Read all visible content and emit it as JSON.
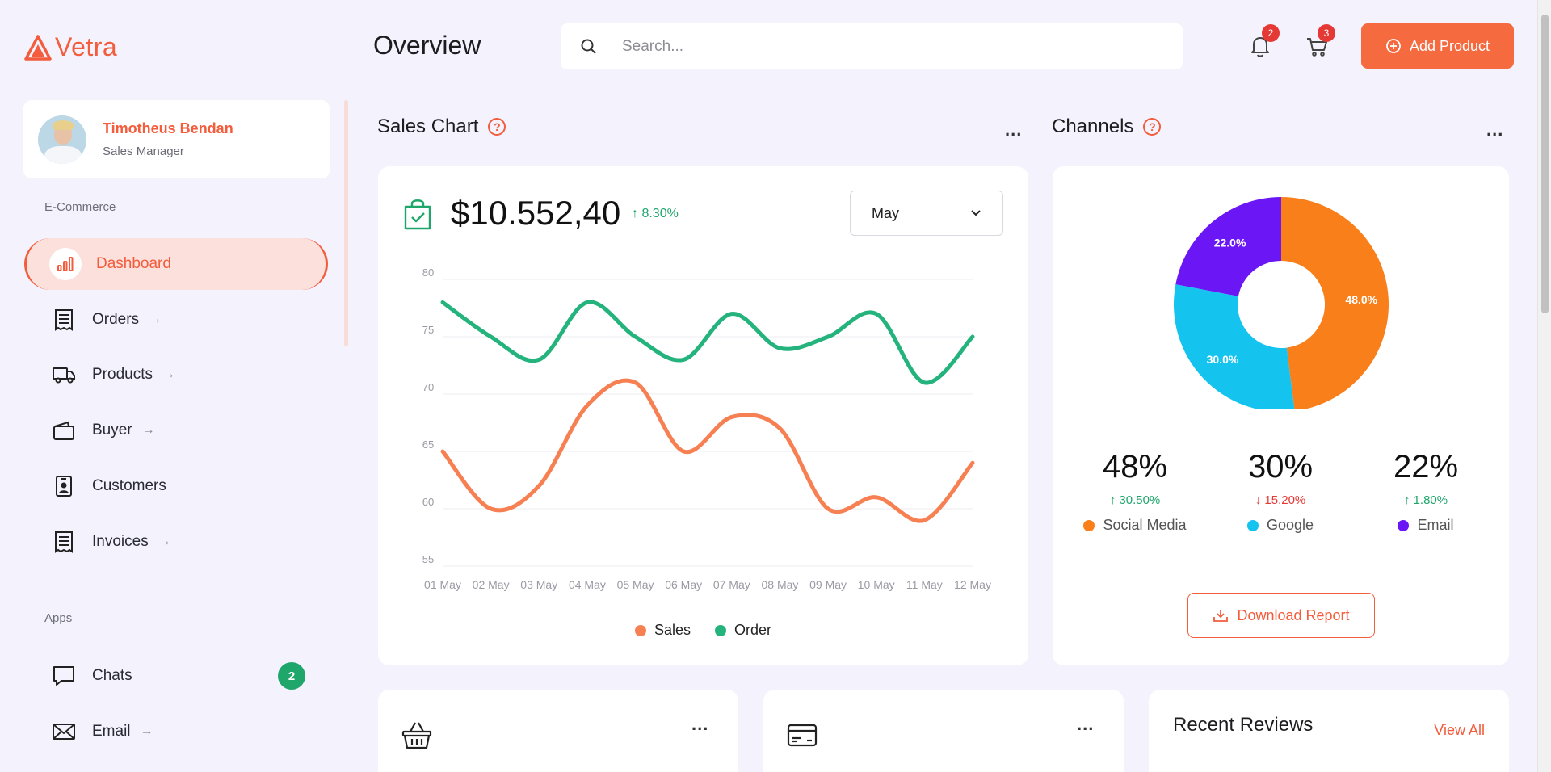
{
  "app": {
    "name": "Vetra"
  },
  "profile": {
    "name": "Timotheus Bendan",
    "role": "Sales Manager"
  },
  "sidebar": {
    "section_ecommerce": "E-Commerce",
    "section_apps": "Apps",
    "items": [
      {
        "label": "Dashboard",
        "icon": "bar-chart-icon",
        "active": true,
        "arrow": ""
      },
      {
        "label": "Orders",
        "icon": "receipt-icon",
        "arrow": "→"
      },
      {
        "label": "Products",
        "icon": "truck-icon",
        "arrow": "→"
      },
      {
        "label": "Buyer",
        "icon": "wallet-icon",
        "arrow": "→"
      },
      {
        "label": "Customers",
        "icon": "id-badge-icon",
        "arrow": ""
      },
      {
        "label": "Invoices",
        "icon": "invoice-icon",
        "arrow": "→"
      }
    ],
    "apps": [
      {
        "label": "Chats",
        "icon": "chat-icon",
        "badge": "2"
      },
      {
        "label": "Email",
        "icon": "mail-icon",
        "arrow": "→"
      }
    ]
  },
  "header": {
    "title": "Overview",
    "search_placeholder": "Search...",
    "notifications_count": "2",
    "cart_count": "3",
    "add_product_label": "Add Product"
  },
  "sales": {
    "title": "Sales Chart",
    "help": "?",
    "more": "...",
    "amount": "$10.552,40",
    "change": "↑ 8.30%",
    "month": "May"
  },
  "channels": {
    "title": "Channels",
    "help": "?",
    "more": "...",
    "stats": [
      {
        "value": "48%",
        "change": "↑ 30.50%",
        "direction": "up",
        "name": "Social Media",
        "color": "#f97f1b"
      },
      {
        "value": "30%",
        "change": "↓ 15.20%",
        "direction": "down",
        "name": "Google",
        "color": "#15c3ef"
      },
      {
        "value": "22%",
        "change": "↑ 1.80%",
        "direction": "up",
        "name": "Email",
        "color": "#6a16f5"
      }
    ],
    "download_label": "Download Report"
  },
  "bottom": {
    "more": "...",
    "reviews_title": "Recent Reviews",
    "view_all": "View All"
  },
  "colors": {
    "accent": "#f35c3c",
    "sales_line": "#f78052",
    "order_line": "#24b37c",
    "positive": "#1fa66b",
    "negative": "#e53935"
  },
  "chart_data": [
    {
      "type": "line",
      "title": "Sales Chart",
      "categories": [
        "01 May",
        "02 May",
        "03 May",
        "04 May",
        "05 May",
        "06 May",
        "07 May",
        "08 May",
        "09 May",
        "10 May",
        "11 May",
        "12 May"
      ],
      "series": [
        {
          "name": "Sales",
          "values": [
            65,
            60,
            62,
            69,
            71,
            65,
            68,
            67,
            60,
            61,
            59,
            64
          ]
        },
        {
          "name": "Order",
          "values": [
            78,
            75,
            73,
            78,
            75,
            73,
            77,
            74,
            75,
            77,
            71,
            75
          ]
        }
      ],
      "yticks": [
        "80",
        "75",
        "70",
        "65",
        "60",
        "55"
      ],
      "ylim": [
        55,
        80
      ],
      "grid": true,
      "legend": "bottom"
    },
    {
      "type": "pie",
      "title": "Channels",
      "donut": true,
      "slices": [
        {
          "name": "Social Media",
          "value": 48,
          "label": "48.0%"
        },
        {
          "name": "Google",
          "value": 30,
          "label": "30.0%"
        },
        {
          "name": "Email",
          "value": 22,
          "label": "22.0%"
        }
      ]
    }
  ]
}
